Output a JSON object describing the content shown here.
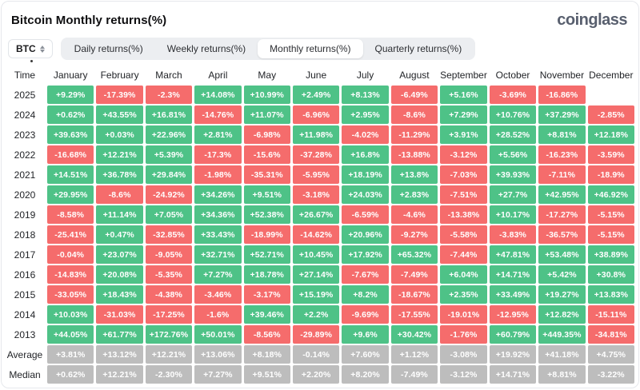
{
  "header": {
    "title": "Bitcoin Monthly returns(%)",
    "logo": "coinglass"
  },
  "controls": {
    "symbol_select": {
      "value": "BTC"
    },
    "tabs": [
      {
        "label": "Daily returns(%)",
        "active": false
      },
      {
        "label": "Weekly returns(%)",
        "active": false
      },
      {
        "label": "Monthly returns(%)",
        "active": true
      },
      {
        "label": "Quarterly returns(%)",
        "active": false
      }
    ]
  },
  "colors": {
    "positive": "#4ec287",
    "negative": "#f56c6c",
    "neutral": "#bdbdbd"
  },
  "chart_data": {
    "type": "heatmap",
    "title": "Bitcoin Monthly returns(%)",
    "time_header": "Time",
    "months": [
      "January",
      "February",
      "March",
      "April",
      "May",
      "June",
      "July",
      "August",
      "September",
      "October",
      "November",
      "December"
    ],
    "rows": [
      {
        "label": "2025",
        "type": "year",
        "values": [
          "+9.29%",
          "-17.39%",
          "-2.3%",
          "+14.08%",
          "+10.99%",
          "+2.49%",
          "+8.13%",
          "-6.49%",
          "+5.16%",
          "-3.69%",
          "-16.86%",
          null
        ]
      },
      {
        "label": "2024",
        "type": "year",
        "values": [
          "+0.62%",
          "+43.55%",
          "+16.81%",
          "-14.76%",
          "+11.07%",
          "-6.96%",
          "+2.95%",
          "-8.6%",
          "+7.29%",
          "+10.76%",
          "+37.29%",
          "-2.85%"
        ]
      },
      {
        "label": "2023",
        "type": "year",
        "values": [
          "+39.63%",
          "+0.03%",
          "+22.96%",
          "+2.81%",
          "-6.98%",
          "+11.98%",
          "-4.02%",
          "-11.29%",
          "+3.91%",
          "+28.52%",
          "+8.81%",
          "+12.18%"
        ]
      },
      {
        "label": "2022",
        "type": "year",
        "values": [
          "-16.68%",
          "+12.21%",
          "+5.39%",
          "-17.3%",
          "-15.6%",
          "-37.28%",
          "+16.8%",
          "-13.88%",
          "-3.12%",
          "+5.56%",
          "-16.23%",
          "-3.59%"
        ]
      },
      {
        "label": "2021",
        "type": "year",
        "values": [
          "+14.51%",
          "+36.78%",
          "+29.84%",
          "-1.98%",
          "-35.31%",
          "-5.95%",
          "+18.19%",
          "+13.8%",
          "-7.03%",
          "+39.93%",
          "-7.11%",
          "-18.9%"
        ]
      },
      {
        "label": "2020",
        "type": "year",
        "values": [
          "+29.95%",
          "-8.6%",
          "-24.92%",
          "+34.26%",
          "+9.51%",
          "-3.18%",
          "+24.03%",
          "+2.83%",
          "-7.51%",
          "+27.7%",
          "+42.95%",
          "+46.92%"
        ]
      },
      {
        "label": "2019",
        "type": "year",
        "values": [
          "-8.58%",
          "+11.14%",
          "+7.05%",
          "+34.36%",
          "+52.38%",
          "+26.67%",
          "-6.59%",
          "-4.6%",
          "-13.38%",
          "+10.17%",
          "-17.27%",
          "-5.15%"
        ]
      },
      {
        "label": "2018",
        "type": "year",
        "values": [
          "-25.41%",
          "+0.47%",
          "-32.85%",
          "+33.43%",
          "-18.99%",
          "-14.62%",
          "+20.96%",
          "-9.27%",
          "-5.58%",
          "-3.83%",
          "-36.57%",
          "-5.15%"
        ]
      },
      {
        "label": "2017",
        "type": "year",
        "values": [
          "-0.04%",
          "+23.07%",
          "-9.05%",
          "+32.71%",
          "+52.71%",
          "+10.45%",
          "+17.92%",
          "+65.32%",
          "-7.44%",
          "+47.81%",
          "+53.48%",
          "+38.89%"
        ]
      },
      {
        "label": "2016",
        "type": "year",
        "values": [
          "-14.83%",
          "+20.08%",
          "-5.35%",
          "+7.27%",
          "+18.78%",
          "+27.14%",
          "-7.67%",
          "-7.49%",
          "+6.04%",
          "+14.71%",
          "+5.42%",
          "+30.8%"
        ]
      },
      {
        "label": "2015",
        "type": "year",
        "values": [
          "-33.05%",
          "+18.43%",
          "-4.38%",
          "-3.46%",
          "-3.17%",
          "+15.19%",
          "+8.2%",
          "-18.67%",
          "+2.35%",
          "+33.49%",
          "+19.27%",
          "+13.83%"
        ]
      },
      {
        "label": "2014",
        "type": "year",
        "values": [
          "+10.03%",
          "-31.03%",
          "-17.25%",
          "-1.6%",
          "+39.46%",
          "+2.2%",
          "-9.69%",
          "-17.55%",
          "-19.01%",
          "-12.95%",
          "+12.82%",
          "-15.11%"
        ]
      },
      {
        "label": "2013",
        "type": "year",
        "values": [
          "+44.05%",
          "+61.77%",
          "+172.76%",
          "+50.01%",
          "-8.56%",
          "-29.89%",
          "+9.6%",
          "+30.42%",
          "-1.76%",
          "+60.79%",
          "+449.35%",
          "-34.81%"
        ]
      },
      {
        "label": "Average",
        "type": "summary",
        "values": [
          "+3.81%",
          "+13.12%",
          "+12.21%",
          "+13.06%",
          "+8.18%",
          "-0.14%",
          "+7.60%",
          "+1.12%",
          "-3.08%",
          "+19.92%",
          "+41.18%",
          "+4.75%"
        ]
      },
      {
        "label": "Median",
        "type": "summary",
        "values": [
          "+0.62%",
          "+12.21%",
          "-2.30%",
          "+7.27%",
          "+9.51%",
          "+2.20%",
          "+8.20%",
          "-7.49%",
          "-3.12%",
          "+14.71%",
          "+8.81%",
          "-3.22%"
        ]
      }
    ]
  }
}
